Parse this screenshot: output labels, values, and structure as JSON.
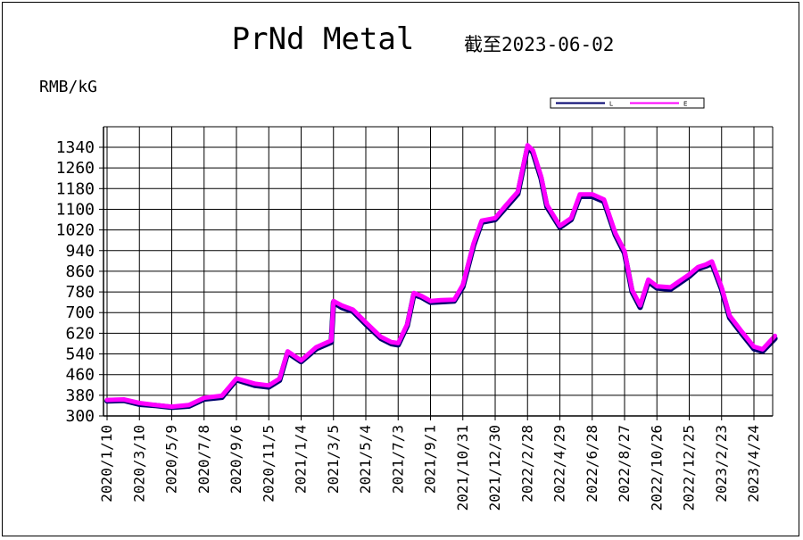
{
  "chart_data": {
    "type": "line",
    "title": "PrNd Metal",
    "subtitle": "截至2023-06-02",
    "ylabel": "RMB/kG",
    "ylim": [
      300,
      1340
    ],
    "yticks": [
      300,
      380,
      460,
      540,
      620,
      700,
      780,
      860,
      940,
      1020,
      1100,
      1180,
      1260,
      1340
    ],
    "grid": true,
    "legend_position": "top-right",
    "x_tick_labels": [
      "2020/1/10",
      "2020/3/10",
      "2020/5/9",
      "2020/7/8",
      "2020/9/6",
      "2020/11/5",
      "2021/1/4",
      "2021/3/5",
      "2021/5/4",
      "2021/7/3",
      "2021/9/1",
      "2021/10/31",
      "2021/12/30",
      "2022/2/28",
      "2022/4/29",
      "2022/6/28",
      "2022/8/27",
      "2022/10/26",
      "2022/12/25",
      "2023/2/23",
      "2023/4/24"
    ],
    "x": [
      "2020/1/10",
      "2020/2/10",
      "2020/3/10",
      "2020/4/10",
      "2020/5/9",
      "2020/6/10",
      "2020/7/8",
      "2020/8/10",
      "2020/9/6",
      "2020/10/10",
      "2020/11/5",
      "2020/11/25",
      "2020/12/10",
      "2021/1/4",
      "2021/2/1",
      "2021/3/1",
      "2021/3/5",
      "2021/3/20",
      "2021/4/10",
      "2021/5/4",
      "2021/6/1",
      "2021/6/20",
      "2021/7/3",
      "2021/7/20",
      "2021/8/1",
      "2021/8/15",
      "2021/9/1",
      "2021/9/20",
      "2021/10/15",
      "2021/10/31",
      "2021/11/20",
      "2021/12/5",
      "2021/12/30",
      "2022/1/20",
      "2022/2/10",
      "2022/2/28",
      "2022/3/10",
      "2022/3/25",
      "2022/4/5",
      "2022/4/29",
      "2022/5/20",
      "2022/6/5",
      "2022/6/28",
      "2022/7/20",
      "2022/8/10",
      "2022/8/27",
      "2022/9/10",
      "2022/9/25",
      "2022/10/10",
      "2022/10/26",
      "2022/11/20",
      "2022/12/25",
      "2023/1/10",
      "2023/1/25",
      "2023/2/5",
      "2023/2/23",
      "2023/3/10",
      "2023/4/1",
      "2023/4/24",
      "2023/5/10",
      "2023/6/2"
    ],
    "series": [
      {
        "name": "L",
        "color": "#00006e",
        "values": [
          358,
          360,
          345,
          340,
          333,
          338,
          365,
          372,
          440,
          418,
          412,
          438,
          545,
          510,
          560,
          585,
          740,
          720,
          705,
          655,
          600,
          580,
          575,
          650,
          770,
          760,
          740,
          742,
          745,
          800,
          960,
          1050,
          1060,
          1110,
          1160,
          1340,
          1320,
          1220,
          1110,
          1030,
          1060,
          1150,
          1150,
          1130,
          1000,
          930,
          780,
          720,
          820,
          795,
          790,
          840,
          870,
          880,
          890,
          790,
          680,
          620,
          560,
          550,
          600
        ]
      },
      {
        "name": "E",
        "color": "#ff00ff",
        "values": [
          362,
          364,
          350,
          342,
          336,
          342,
          370,
          378,
          445,
          425,
          418,
          444,
          550,
          515,
          566,
          592,
          745,
          728,
          712,
          662,
          606,
          586,
          582,
          656,
          776,
          765,
          745,
          748,
          750,
          808,
          968,
          1056,
          1066,
          1118,
          1168,
          1348,
          1328,
          1228,
          1118,
          1036,
          1066,
          1158,
          1158,
          1138,
          1008,
          938,
          788,
          728,
          828,
          802,
          798,
          848,
          876,
          886,
          898,
          798,
          688,
          628,
          568,
          558,
          610
        ]
      }
    ]
  }
}
